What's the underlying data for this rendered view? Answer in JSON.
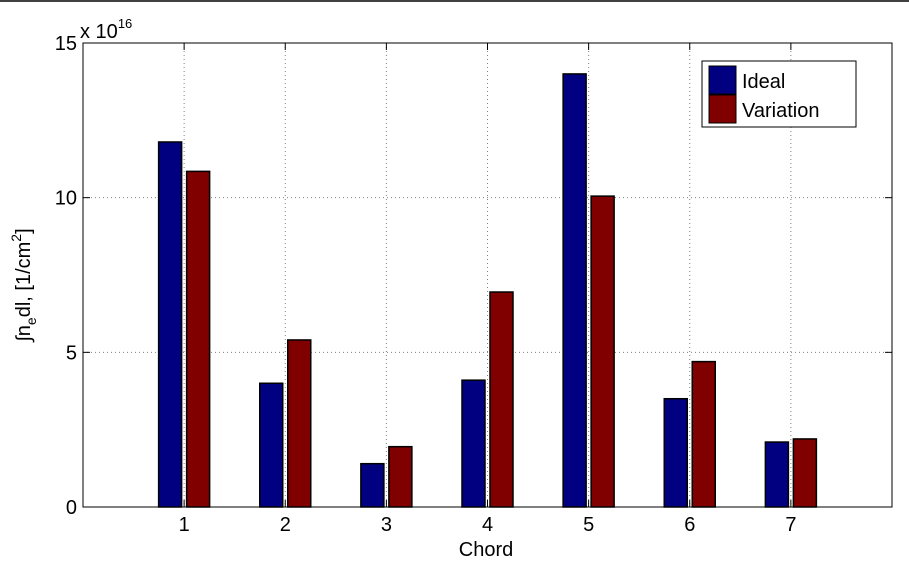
{
  "chart_data": {
    "type": "bar",
    "categories": [
      "1",
      "2",
      "3",
      "4",
      "5",
      "6",
      "7"
    ],
    "series": [
      {
        "name": "Ideal",
        "color": "#000080",
        "values": [
          11.8,
          4.0,
          1.4,
          4.1,
          14.0,
          3.5,
          2.1
        ]
      },
      {
        "name": "Variation",
        "color": "#800000",
        "values": [
          10.85,
          5.4,
          1.95,
          6.95,
          10.05,
          4.7,
          2.2
        ]
      }
    ],
    "xlabel": "Chord",
    "ylabel_main": "∫n",
    "ylabel_sub": "e",
    "ylabel_rest": "dl, [1/cm",
    "ylabel_sup": "2",
    "ylabel_end": "]",
    "ylim": [
      0,
      15
    ],
    "yticks": [
      "0",
      "5",
      "10",
      "15"
    ],
    "yscale_base": "x 10",
    "yscale_exp": "16",
    "grid": true,
    "legend_position": "top-right",
    "bar_edge_color": "#000000"
  }
}
